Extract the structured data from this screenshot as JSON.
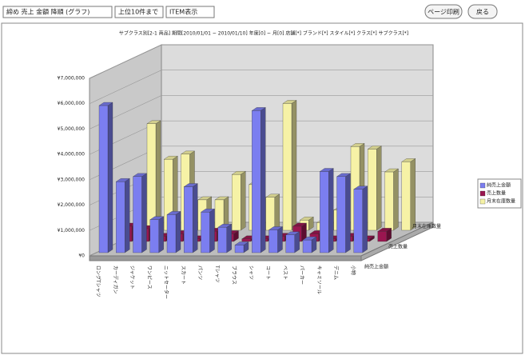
{
  "controls": {
    "select_sort": "締め 売上 金額 降順 (グラフ)",
    "select_limit": "上位10件まで",
    "select_display": "ITEM表示",
    "button_print": "ページ印刷",
    "button_back": "戻る"
  },
  "chart_data": {
    "type": "bar3d",
    "subtitle": "サブクラス別[2-1 商品] 期間[2010/01/01 ~ 2010/01/10] 年度[0] ~ 月[0] 店舗[*] ブランド[*] スタイル[*] クラス[*] サブクラス[*]",
    "categories": [
      "ロングTシャツ",
      "カーディガン",
      "ジャケット",
      "ワンピース",
      "ニットセーター",
      "スカート",
      "パンツ",
      "Tシャツ",
      "ブラウス",
      "シャツ",
      "コート",
      "ベスト",
      "パーカー",
      "キャミソール",
      "デニム",
      "小物"
    ],
    "series": [
      {
        "name": "純売上金額",
        "color": "#7b7ef0",
        "values": [
          5800000,
          2800000,
          3000000,
          1300000,
          1500000,
          2600000,
          1600000,
          1000000,
          300000,
          5600000,
          900000,
          700000,
          500000,
          3200000,
          3000000,
          2500000
        ]
      },
      {
        "name": "売上数量",
        "color": "#9a1650",
        "values": [
          600000,
          500000,
          200000,
          300000,
          100000,
          400000,
          300000,
          100000,
          100000,
          200000,
          600000,
          300000,
          100000,
          200000,
          100000,
          400000
        ]
      },
      {
        "name": "月末在庫数量",
        "color": "#f6f2a6",
        "values": [
          4200000,
          2800000,
          3000000,
          1200000,
          1200000,
          2200000,
          1800000,
          1300000,
          5000000,
          400000,
          300000,
          800000,
          3300000,
          3200000,
          2300000,
          2700000
        ]
      }
    ],
    "ylim": [
      0,
      7000000
    ],
    "yticks": [
      {
        "value": 0,
        "label": "¥0"
      },
      {
        "value": 1000000,
        "label": "¥1,000,000"
      },
      {
        "value": 2000000,
        "label": "¥2,000,000"
      },
      {
        "value": 3000000,
        "label": "¥3,000,000"
      },
      {
        "value": 4000000,
        "label": "¥4,000,000"
      },
      {
        "value": 5000000,
        "label": "¥5,000,000"
      },
      {
        "value": 6000000,
        "label": "¥6,000,000"
      },
      {
        "value": 7000000,
        "label": "¥7,000,000"
      }
    ],
    "grid": true
  }
}
